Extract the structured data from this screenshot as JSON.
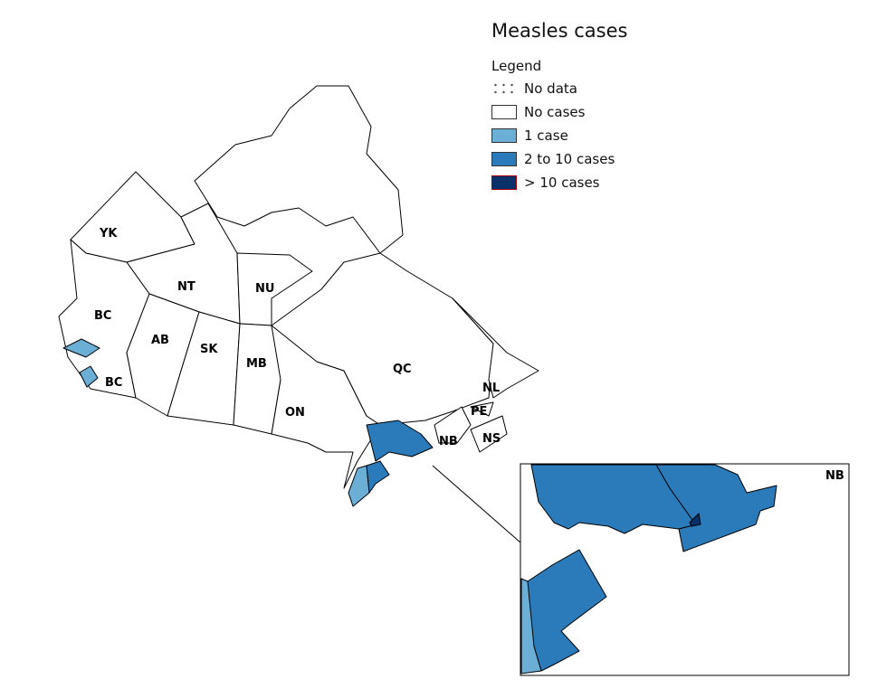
{
  "title": "Measles cases",
  "legend": {
    "title": "Legend",
    "items": [
      {
        "label": "No data",
        "color": "dotted"
      },
      {
        "label": "No cases",
        "color": "#ffffff"
      },
      {
        "label": "1 case",
        "color": "#6baed6"
      },
      {
        "label": "2 to 10 cases",
        "color": "#2b7bba"
      },
      {
        "label": "> 10 cases",
        "color": "#08306b"
      }
    ]
  },
  "regions": [
    "YK",
    "NT",
    "NU",
    "BC",
    "AB",
    "SK",
    "MB",
    "ON",
    "QC",
    "NL",
    "PE",
    "NB",
    "NS",
    "BC"
  ],
  "inset_label": "NB",
  "colors": {
    "none": "#ffffff",
    "one": "#6baed6",
    "few": "#2b7bba",
    "many": "#08306b"
  }
}
